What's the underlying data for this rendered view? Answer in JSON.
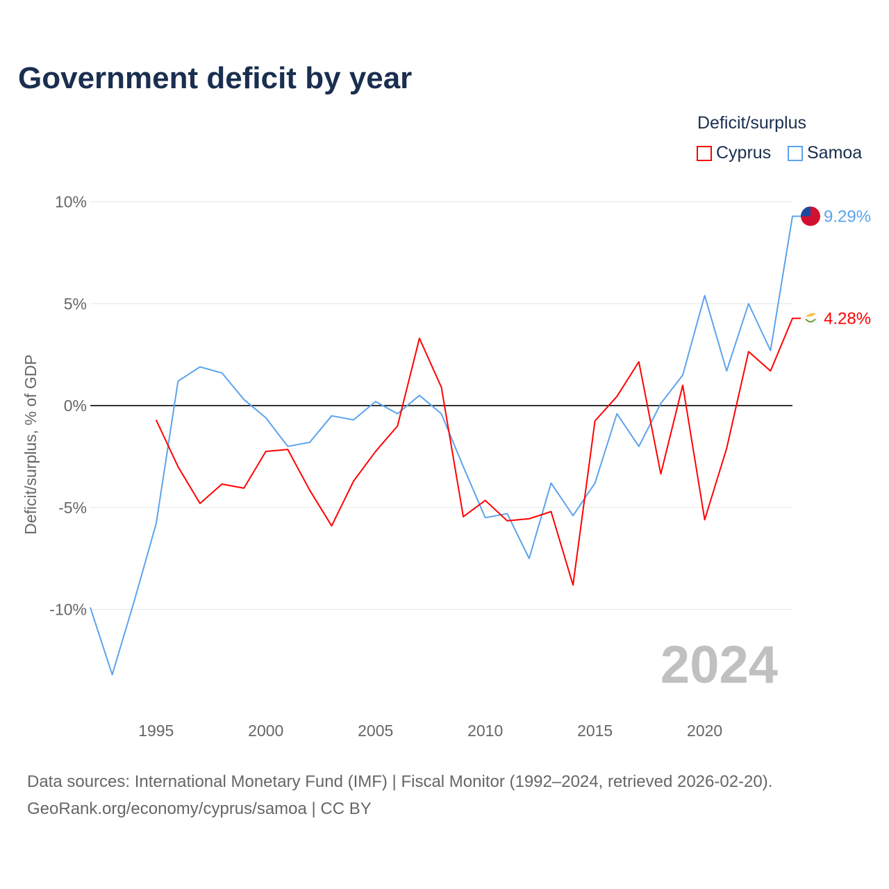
{
  "title": "Government deficit by year",
  "legend": {
    "title": "Deficit/surplus",
    "items": [
      {
        "label": "Cyprus",
        "color": "#ff0000"
      },
      {
        "label": "Samoa",
        "color": "#5ba3ec"
      }
    ]
  },
  "source": {
    "line1": "Data sources: International Monetary Fund (IMF) | Fiscal Monitor (1992–2024, retrieved 2026-02-20).",
    "line2": "GeoRank.org/economy/cyprus/samoa | CC BY"
  },
  "chart_data": {
    "type": "line",
    "title": "Government deficit by year",
    "ylabel": "Deficit/surplus, % of GDP",
    "xlabel": "",
    "year_watermark": "2024",
    "xlim": [
      1992,
      2024
    ],
    "ylim": [
      -13.7,
      10
    ],
    "x_ticks": [
      1995,
      2000,
      2005,
      2010,
      2015,
      2020
    ],
    "y_ticks": [
      {
        "v": 10,
        "label": "10%"
      },
      {
        "v": 5,
        "label": "5%"
      },
      {
        "v": 0,
        "label": "0%"
      },
      {
        "v": -5,
        "label": "-5%"
      },
      {
        "v": -10,
        "label": "-10%"
      }
    ],
    "series": [
      {
        "name": "Samoa",
        "color": "#5ba3ec",
        "end_label": "9.29%",
        "start": 1992,
        "values": [
          -9.9,
          -13.2,
          -9.6,
          -5.8,
          1.2,
          1.9,
          1.6,
          0.3,
          -0.6,
          -2.0,
          -1.8,
          -0.5,
          -0.7,
          0.2,
          -0.4,
          0.5,
          -0.4,
          -3.0,
          -5.5,
          -5.3,
          -7.5,
          -3.8,
          -5.4,
          -3.8,
          -0.4,
          -2.0,
          0.1,
          1.5,
          5.4,
          1.7,
          5.0,
          2.7,
          9.29
        ]
      },
      {
        "name": "Cyprus",
        "color": "#ff0000",
        "end_label": "4.28%",
        "start": 1995,
        "values": [
          -0.7,
          -3.0,
          -4.8,
          -3.85,
          -4.05,
          -2.25,
          -2.15,
          -4.15,
          -5.9,
          -3.7,
          -2.25,
          -1.0,
          3.3,
          0.9,
          -5.45,
          -4.65,
          -5.65,
          -5.55,
          -5.2,
          -8.8,
          -0.75,
          0.45,
          2.15,
          -3.35,
          1.0,
          -5.6,
          -2.1,
          2.65,
          1.7,
          4.28
        ]
      }
    ]
  }
}
